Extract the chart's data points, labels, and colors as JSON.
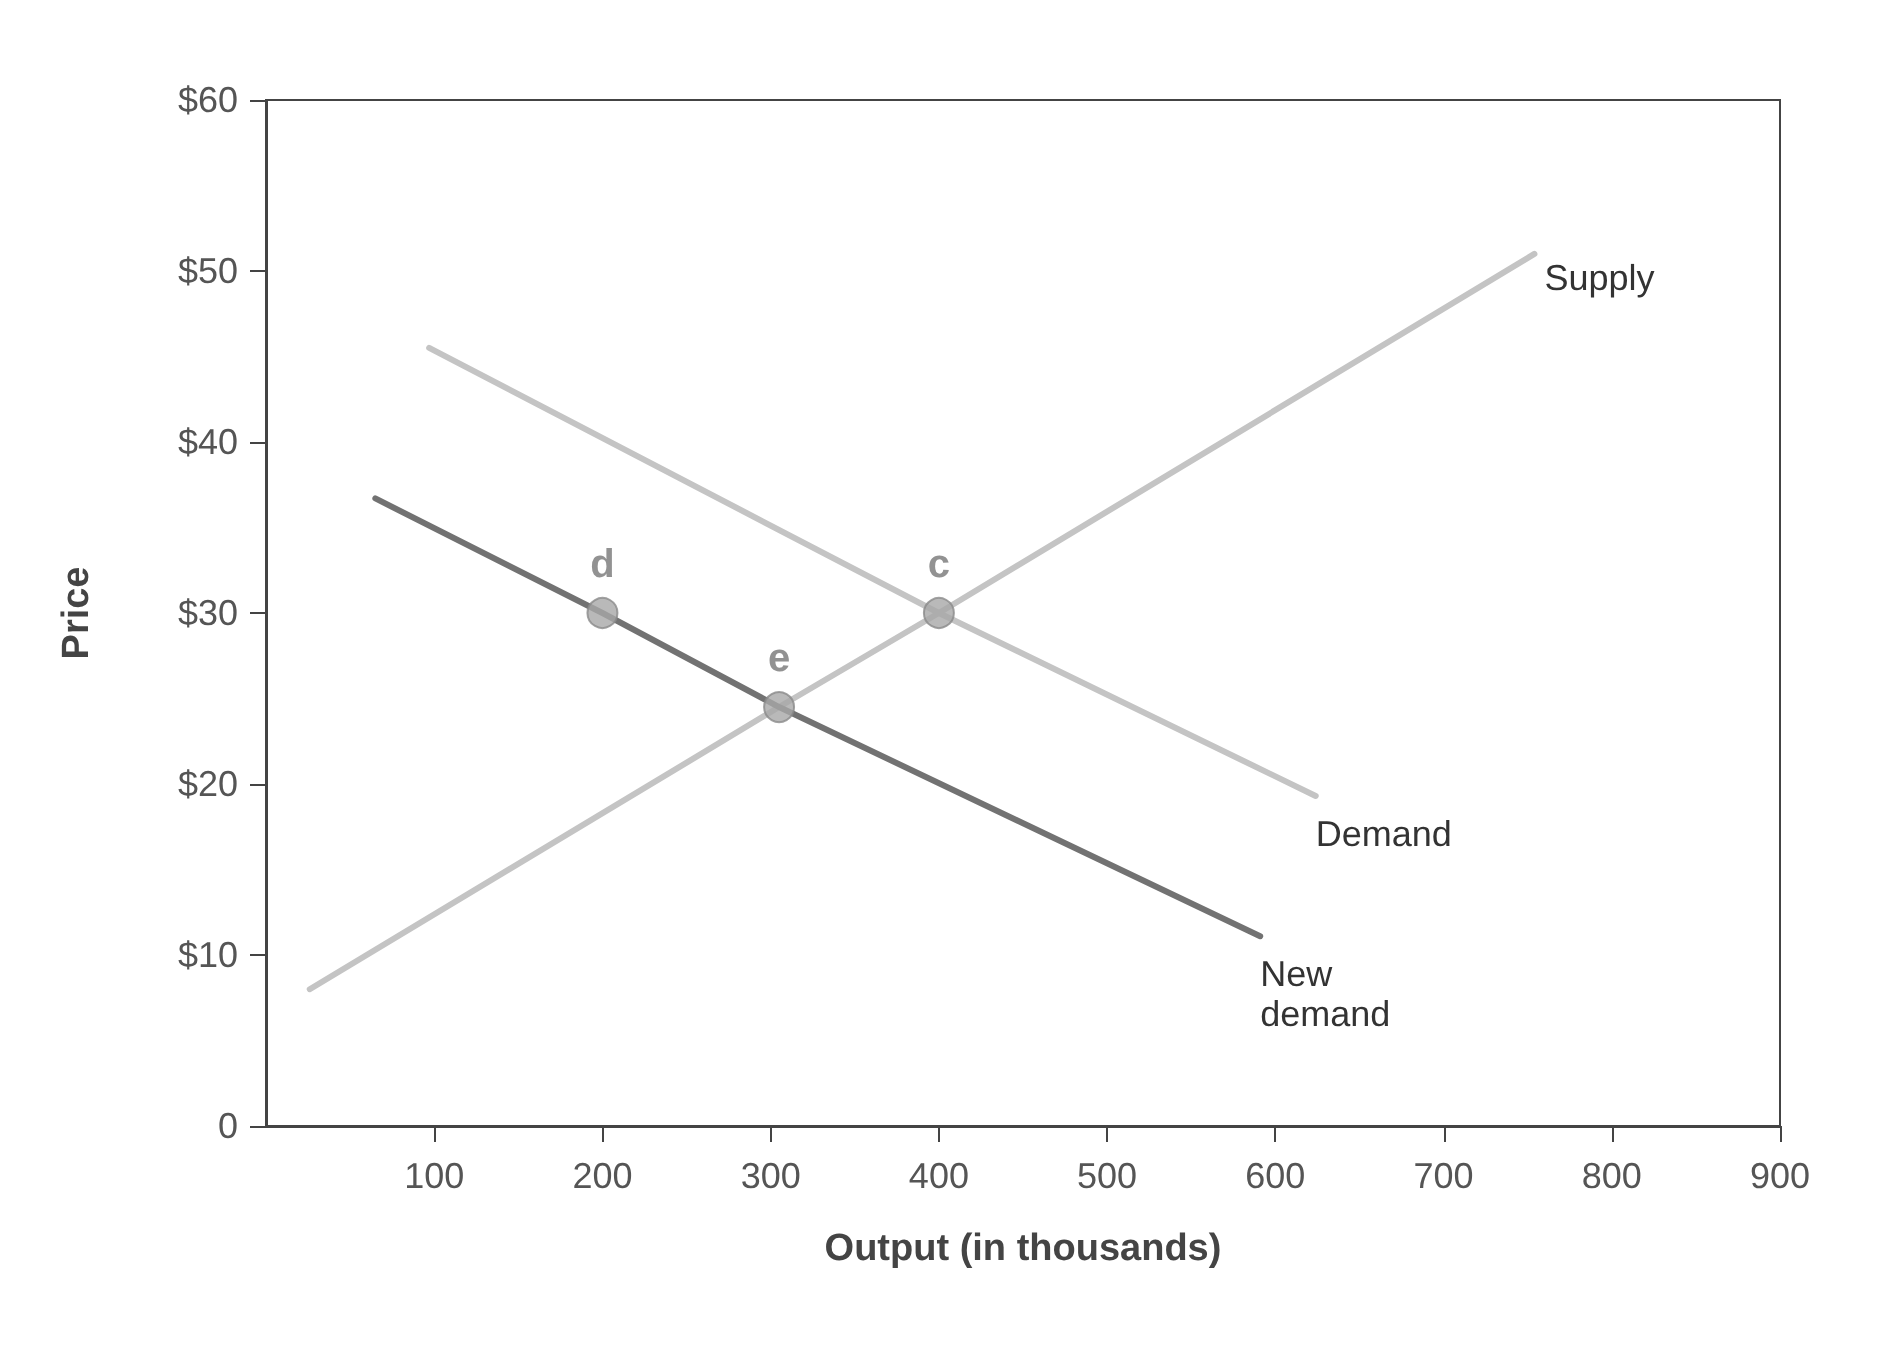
{
  "chart_data": {
    "type": "line",
    "xlabel": "Output (in thousands)",
    "ylabel": "Price",
    "xlim": [
      0,
      900
    ],
    "xticks": [
      100,
      200,
      300,
      400,
      500,
      600,
      700,
      800,
      900
    ],
    "ylim": [
      0,
      60
    ],
    "yticks": [
      {
        "value": 0,
        "label": "0"
      },
      {
        "value": 10,
        "label": "$10"
      },
      {
        "value": 20,
        "label": "$20"
      },
      {
        "value": 30,
        "label": "$30"
      },
      {
        "value": 40,
        "label": "$40"
      },
      {
        "value": 50,
        "label": "$50"
      },
      {
        "value": 60,
        "label": "$60"
      }
    ],
    "grid": false,
    "legend": false,
    "marker": "none",
    "line_style": "solid",
    "series": [
      {
        "name": "Supply",
        "color": "#c4c4c4",
        "x": [
          26,
          305,
          400,
          754
        ],
        "values": [
          8,
          24.5,
          30,
          51
        ]
      },
      {
        "name": "Demand",
        "color": "#c4c4c4",
        "x": [
          97,
          400,
          624
        ],
        "values": [
          45.5,
          30,
          19.3
        ]
      },
      {
        "name": "New demand",
        "color": "#727272",
        "x": [
          65,
          200,
          305,
          591
        ],
        "values": [
          36.7,
          30,
          24.5,
          11.1
        ]
      },
      {
        "type": "scatter",
        "marker": "circle",
        "color": "#a8a8a8",
        "x": [
          200,
          305,
          400
        ],
        "values": [
          30,
          24.5,
          30
        ],
        "value_labels": [
          "d",
          "e",
          "c"
        ]
      }
    ]
  }
}
